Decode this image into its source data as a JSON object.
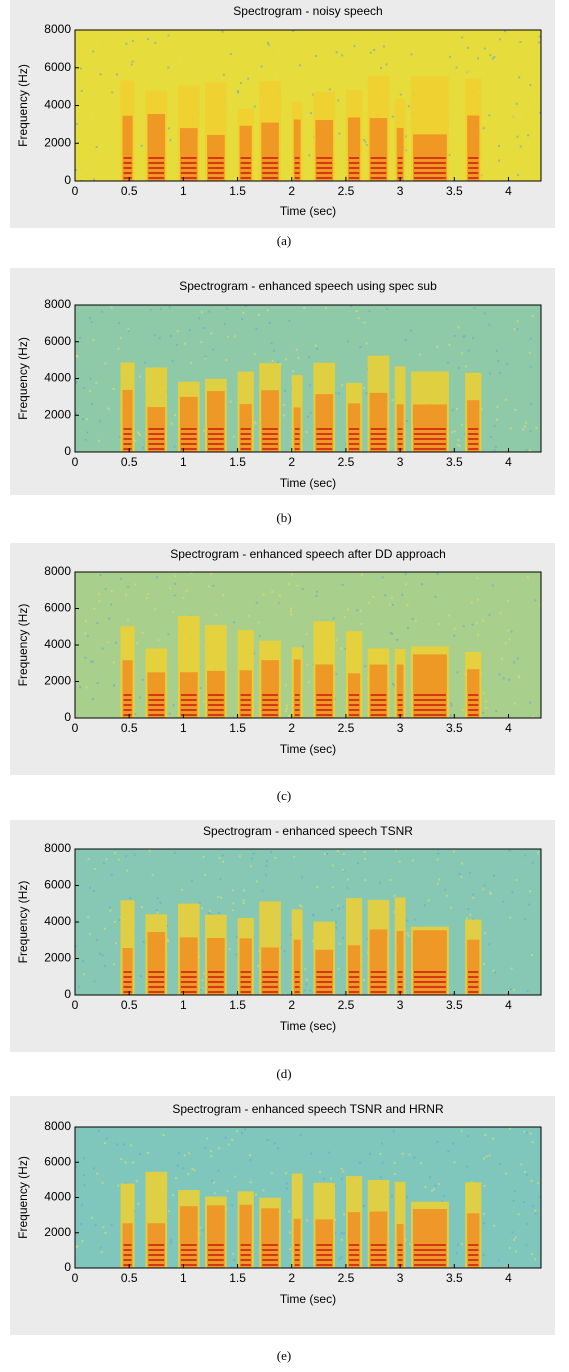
{
  "chart_data": [
    {
      "type": "spectrogram",
      "title": "Spectrogram - noisy speech",
      "xlabel": "Time (sec)",
      "ylabel": "Frequency (Hz)",
      "xlim": [
        0,
        4.3
      ],
      "ylim": [
        0,
        8000
      ],
      "xticks": [
        0,
        0.5,
        1,
        1.5,
        2,
        2.5,
        3,
        3.5,
        4
      ],
      "yticks": [
        0,
        2000,
        4000,
        6000,
        8000
      ],
      "background_color": "#e6dc3c"
    },
    {
      "type": "spectrogram",
      "title": "Spectrogram - enhanced speech using spec sub",
      "xlabel": "Time (sec)",
      "ylabel": "Frequency (Hz)",
      "xlim": [
        0,
        4.3
      ],
      "ylim": [
        0,
        8000
      ],
      "xticks": [
        0,
        0.5,
        1,
        1.5,
        2,
        2.5,
        3,
        3.5,
        4
      ],
      "yticks": [
        0,
        2000,
        4000,
        6000,
        8000
      ],
      "background_color": "#8fcaa8"
    },
    {
      "type": "spectrogram",
      "title": "Spectrogram - enhanced speech after DD approach",
      "xlabel": "Time (sec)",
      "ylabel": "Frequency (Hz)",
      "xlim": [
        0,
        4.3
      ],
      "ylim": [
        0,
        8000
      ],
      "xticks": [
        0,
        0.5,
        1,
        1.5,
        2,
        2.5,
        3,
        3.5,
        4
      ],
      "yticks": [
        0,
        2000,
        4000,
        6000,
        8000
      ],
      "background_color": "#a9cf8c"
    },
    {
      "type": "spectrogram",
      "title": "Spectrogram - enhanced speech TSNR",
      "xlabel": "Time (sec)",
      "ylabel": "Frequency (Hz)",
      "xlim": [
        0,
        4.3
      ],
      "ylim": [
        0,
        8000
      ],
      "xticks": [
        0,
        0.5,
        1,
        1.5,
        2,
        2.5,
        3,
        3.5,
        4
      ],
      "yticks": [
        0,
        2000,
        4000,
        6000,
        8000
      ],
      "background_color": "#86c8b4"
    },
    {
      "type": "spectrogram",
      "title": "Spectrogram - enhanced speech TSNR and HRNR",
      "xlabel": "Time (sec)",
      "ylabel": "Frequency (Hz)",
      "xlim": [
        0,
        4.3
      ],
      "ylim": [
        0,
        8000
      ],
      "xticks": [
        0,
        0.5,
        1,
        1.5,
        2,
        2.5,
        3,
        3.5,
        4
      ],
      "yticks": [
        0,
        2000,
        4000,
        6000,
        8000
      ],
      "background_color": "#7fc6bc"
    }
  ],
  "captions": [
    "(a)",
    "(b)",
    "(c)",
    "(d)",
    "(e)"
  ]
}
